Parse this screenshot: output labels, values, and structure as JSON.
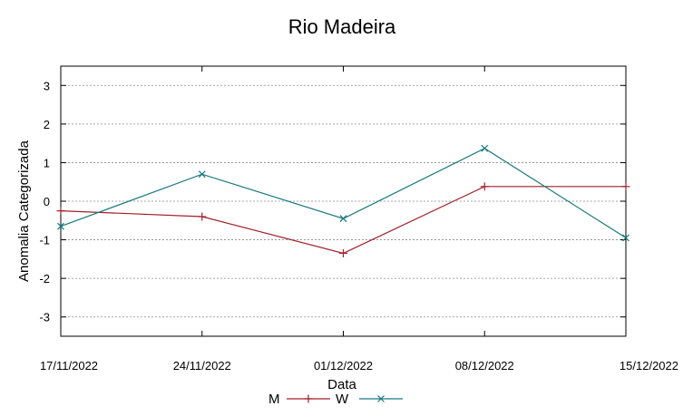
{
  "chart_data": {
    "type": "line",
    "title": "Rio Madeira",
    "xlabel": "Data",
    "ylabel": "Anomalia Categorizada",
    "categories": [
      "17/11/2022",
      "24/11/2022",
      "01/12/2022",
      "08/12/2022",
      "15/12/2022"
    ],
    "yticks": [
      "3",
      "2",
      "1",
      "0",
      "-1",
      "-2",
      "-3"
    ],
    "ylim": [
      -3.5,
      3.5
    ],
    "grid": "horizontal dashed",
    "legend_position": "bottom",
    "series": [
      {
        "name": "M",
        "color": "#a0202a",
        "marker": "plus",
        "values": [
          -0.25,
          -0.4,
          -1.35,
          0.38,
          0.38
        ]
      },
      {
        "name": "W",
        "color": "#1a7a80",
        "marker": "cross",
        "values": [
          -0.65,
          0.7,
          -0.45,
          1.37,
          -0.95
        ]
      }
    ]
  }
}
